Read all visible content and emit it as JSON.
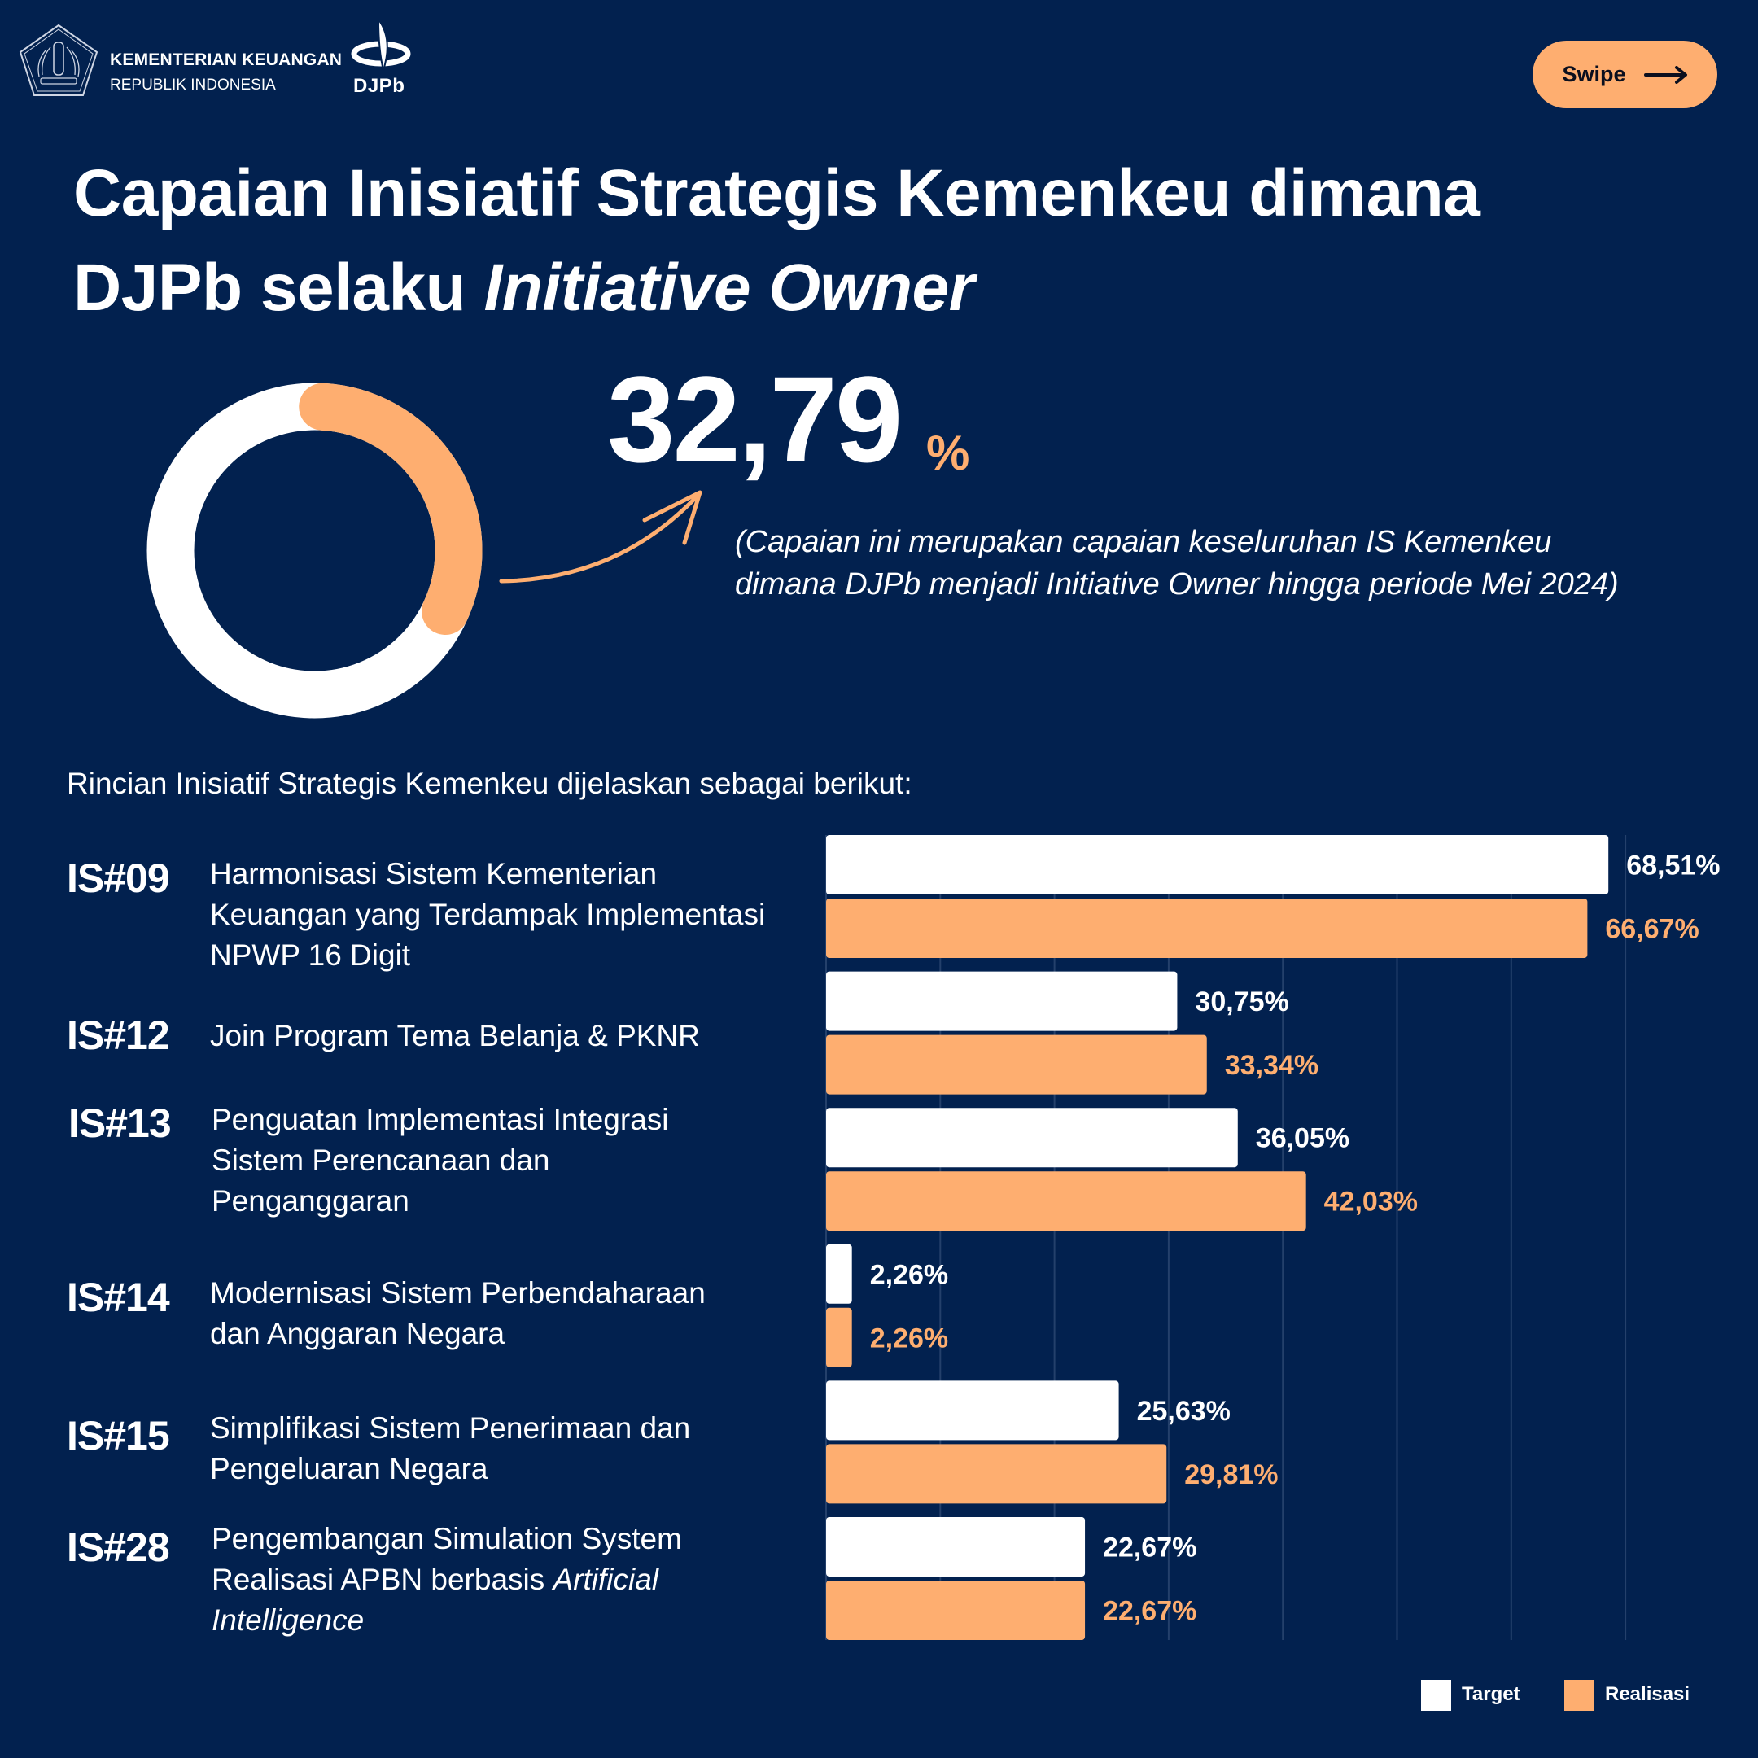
{
  "header": {
    "org_name": "KEMENTERIAN KEUANGAN",
    "org_sub": "REPUBLIK INDONESIA",
    "logo_text": "DJPb",
    "swipe_label": "Swipe",
    "swipe_icon": "arrow-right-icon"
  },
  "title": {
    "line1": "Capaian Inisiatif Strategis Kemenkeu dimana",
    "line2_plain": "DJPb selaku ",
    "line2_italic": "Initiative Owner"
  },
  "summary": {
    "value": "32,79",
    "unit": "%",
    "progress_percent": 32.79,
    "note": "(Capaian ini merupakan capaian keseluruhan IS Kemenkeu dimana DJPb menjadi Initiative Owner hingga periode Mei 2024)"
  },
  "intro": "Rincian Inisiatif Strategis Kemenkeu dijelaskan sebagai berikut:",
  "colors": {
    "background": "#02214f",
    "target": "#ffffff",
    "realisasi": "#feae70",
    "gridline": "#24406b"
  },
  "initiatives": [
    {
      "code": "IS#09",
      "lines": [
        "Harmonisasi Sistem Kementerian",
        "Keuangan yang Terdampak Implementasi",
        "NPWP 16 Digit"
      ]
    },
    {
      "code": "IS#12",
      "lines": [
        "Join Program Tema Belanja & PKNR"
      ]
    },
    {
      "code": "IS#13",
      "lines": [
        "Penguatan Implementasi Integrasi",
        "Sistem Perencanaan dan",
        "Penganggaran"
      ]
    },
    {
      "code": "IS#14",
      "lines": [
        "Modernisasi Sistem Perbendaharaan",
        "dan Anggaran Negara"
      ]
    },
    {
      "code": "IS#15",
      "lines": [
        "Simplifikasi Sistem Penerimaan dan",
        "Pengeluaran Negara"
      ]
    },
    {
      "code": "IS#28",
      "lines": [
        "Pengembangan Simulation System",
        "Realisasi APBN berbasis ",
        "Intelligence"
      ],
      "italic_suffix_line2": "Artificial"
    }
  ],
  "chart_data": {
    "type": "bar",
    "orientation": "horizontal",
    "categories": [
      "IS#09",
      "IS#12",
      "IS#13",
      "IS#14",
      "IS#15",
      "IS#28"
    ],
    "series": [
      {
        "name": "Target",
        "values": [
          68.51,
          30.75,
          36.05,
          2.26,
          25.63,
          22.67
        ],
        "labels": [
          "68,51%",
          "30,75%",
          "36,05%",
          "2,26%",
          "25,63%",
          "22,67%"
        ]
      },
      {
        "name": "Realisasi",
        "values": [
          66.67,
          33.34,
          42.03,
          2.26,
          29.81,
          22.67
        ],
        "labels": [
          "66,67%",
          "33,34%",
          "42,03%",
          "2,26%",
          "29,81%",
          "22,67%"
        ]
      }
    ],
    "xlim": [
      0,
      70
    ],
    "grid_step": 10,
    "grid": true,
    "axis_tick_labels_shown": false,
    "legend": {
      "placement": "bottom-right",
      "entries": [
        "Target",
        "Realisasi"
      ]
    },
    "title": "",
    "xlabel": "",
    "ylabel": ""
  }
}
